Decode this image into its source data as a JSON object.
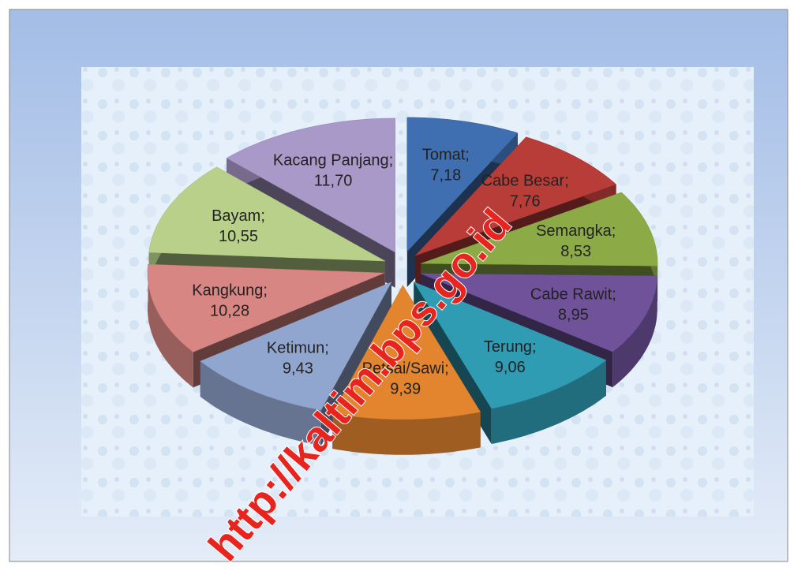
{
  "chart_data": {
    "type": "pie3d",
    "categories": [
      "Tomat;",
      "Cabe Besar;",
      "Semangka;",
      "Cabe Rawit;",
      "Terung;",
      "Petsai/Sawi;",
      "Ketimun;",
      "Kangkung;",
      "Bayam;",
      "Kacang Panjang;"
    ],
    "values": [
      7.18,
      7.76,
      8.53,
      8.95,
      9.06,
      9.39,
      9.43,
      10.28,
      10.55,
      11.7
    ],
    "value_labels": [
      "7,18",
      "7,76",
      "8,53",
      "8,95",
      "9,06",
      "9,39",
      "9,43",
      "10,28",
      "10,55",
      "11,70"
    ],
    "colors": [
      "#3f6fb0",
      "#b83c38",
      "#8cab46",
      "#70529a",
      "#2f9cb4",
      "#e3852f",
      "#91a6cf",
      "#d88683",
      "#b8d08a",
      "#a999c8"
    ],
    "watermark": "http://kaltim.bps.go.id"
  }
}
